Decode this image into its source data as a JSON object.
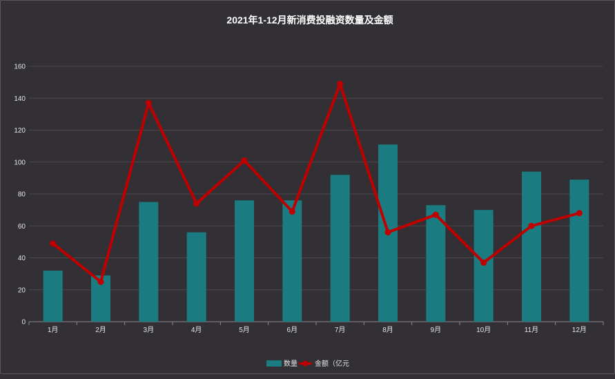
{
  "chart_data": {
    "type": "bar",
    "title": "2021年1-12月新消费投融资数量及金额",
    "categories": [
      "1月",
      "2月",
      "3月",
      "4月",
      "5月",
      "6月",
      "7月",
      "8月",
      "9月",
      "10月",
      "11月",
      "12月"
    ],
    "series": [
      {
        "name": "数量",
        "type": "bar",
        "color": "#1a7b80",
        "values": [
          32,
          29,
          75,
          56,
          76,
          76,
          92,
          111,
          73,
          70,
          94,
          89
        ]
      },
      {
        "name": "金额（亿元",
        "type": "line",
        "color": "#c00000",
        "values": [
          49,
          25,
          137,
          74,
          101,
          69,
          149,
          56,
          67,
          37,
          60,
          68
        ]
      }
    ],
    "ylim": [
      0,
      160
    ],
    "yticks": [
      "0",
      "20",
      "40",
      "60",
      "80",
      "100",
      "120",
      "140",
      "160"
    ],
    "grid": true,
    "legend_position": "bottom-center",
    "xlabel": "",
    "ylabel": ""
  }
}
